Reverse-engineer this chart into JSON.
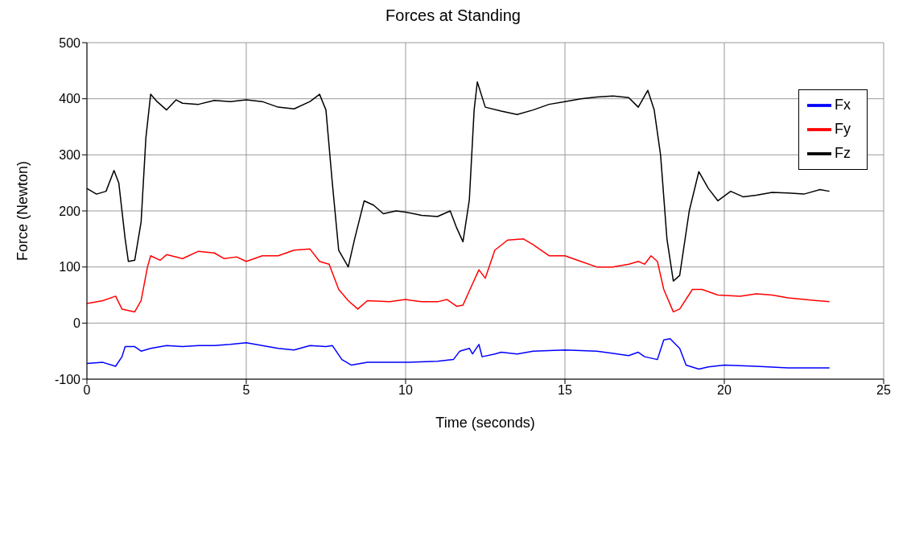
{
  "chart_data": {
    "type": "line",
    "title": "Forces at Standing",
    "xlabel": "Time (seconds)",
    "ylabel": "Force (Newton)",
    "xlim": [
      0,
      25
    ],
    "xticks": [
      0,
      5,
      10,
      15,
      20,
      25
    ],
    "ylim": [
      -100,
      500
    ],
    "yticks": [
      -100,
      0,
      100,
      200,
      300,
      400,
      500
    ],
    "grid": true,
    "legend": "top right",
    "marker": "none",
    "line_style": "solid",
    "series": [
      {
        "name": "Fx",
        "color": "#0000ff",
        "x": [
          0,
          0.5,
          0.9,
          1.1,
          1.2,
          1.5,
          1.7,
          2,
          2.5,
          3,
          3.5,
          4,
          4.5,
          5,
          5.5,
          6,
          6.5,
          7,
          7.5,
          7.7,
          8,
          8.3,
          8.8,
          10,
          11,
          11.5,
          11.7,
          12,
          12.1,
          12.3,
          12.4,
          12.8,
          13,
          13.5,
          14,
          15,
          16,
          17,
          17.3,
          17.5,
          17.9,
          18.1,
          18.3,
          18.6,
          18.8,
          19.2,
          19.5,
          20,
          21,
          22,
          23.3
        ],
        "values": [
          -72,
          -70,
          -77,
          -60,
          -42,
          -42,
          -50,
          -45,
          -40,
          -42,
          -40,
          -40,
          -38,
          -35,
          -40,
          -45,
          -48,
          -40,
          -42,
          -40,
          -65,
          -75,
          -70,
          -70,
          -68,
          -65,
          -50,
          -45,
          -55,
          -38,
          -60,
          -55,
          -52,
          -55,
          -50,
          -48,
          -50,
          -58,
          -52,
          -60,
          -65,
          -30,
          -28,
          -45,
          -75,
          -82,
          -78,
          -75,
          -77,
          -80,
          -80
        ]
      },
      {
        "name": "Fy",
        "color": "#ff0000",
        "x": [
          0,
          0.5,
          0.9,
          1.1,
          1.5,
          1.7,
          1.9,
          2,
          2.3,
          2.5,
          3,
          3.5,
          4,
          4.3,
          4.7,
          5,
          5.5,
          6,
          6.5,
          7,
          7.3,
          7.6,
          7.9,
          8.2,
          8.5,
          8.8,
          9.5,
          10,
          10.5,
          11,
          11.3,
          11.6,
          11.8,
          12.1,
          12.3,
          12.5,
          12.8,
          13.2,
          13.7,
          14,
          14.5,
          15,
          15.5,
          16,
          16.5,
          17,
          17.3,
          17.5,
          17.7,
          17.9,
          18.1,
          18.4,
          18.6,
          19,
          19.3,
          19.8,
          20.5,
          21,
          21.5,
          22,
          23.3
        ],
        "values": [
          35,
          40,
          48,
          25,
          20,
          40,
          100,
          120,
          112,
          122,
          115,
          128,
          125,
          115,
          118,
          110,
          120,
          120,
          130,
          132,
          110,
          105,
          60,
          40,
          25,
          40,
          38,
          42,
          38,
          38,
          42,
          30,
          32,
          70,
          95,
          80,
          130,
          148,
          150,
          140,
          120,
          120,
          110,
          100,
          100,
          105,
          110,
          105,
          120,
          110,
          60,
          20,
          25,
          60,
          60,
          50,
          48,
          52,
          50,
          45,
          38
        ]
      },
      {
        "name": "Fz",
        "color": "#000000",
        "x": [
          0,
          0.3,
          0.6,
          0.85,
          1,
          1.2,
          1.3,
          1.5,
          1.7,
          1.85,
          2,
          2.2,
          2.5,
          2.8,
          3,
          3.5,
          4,
          4.5,
          5,
          5.5,
          6,
          6.5,
          7,
          7.3,
          7.5,
          7.7,
          7.9,
          8.2,
          8.4,
          8.7,
          9,
          9.3,
          9.7,
          10,
          10.5,
          11,
          11.4,
          11.6,
          11.8,
          12,
          12.15,
          12.25,
          12.5,
          13,
          13.5,
          14,
          14.5,
          15,
          15.5,
          16,
          16.5,
          17,
          17.3,
          17.6,
          17.8,
          18,
          18.2,
          18.4,
          18.6,
          18.9,
          19.2,
          19.5,
          19.8,
          20.2,
          20.6,
          21,
          21.5,
          22,
          22.5,
          23,
          23.3
        ],
        "values": [
          240,
          230,
          235,
          272,
          250,
          150,
          110,
          112,
          180,
          330,
          408,
          395,
          380,
          398,
          392,
          390,
          397,
          395,
          398,
          395,
          385,
          382,
          395,
          408,
          380,
          250,
          130,
          100,
          150,
          218,
          210,
          195,
          200,
          198,
          192,
          190,
          200,
          170,
          145,
          220,
          380,
          430,
          385,
          378,
          372,
          380,
          390,
          395,
          400,
          403,
          405,
          402,
          385,
          415,
          380,
          300,
          150,
          75,
          85,
          200,
          270,
          240,
          218,
          235,
          225,
          228,
          233,
          232,
          230,
          238,
          235
        ]
      }
    ]
  }
}
